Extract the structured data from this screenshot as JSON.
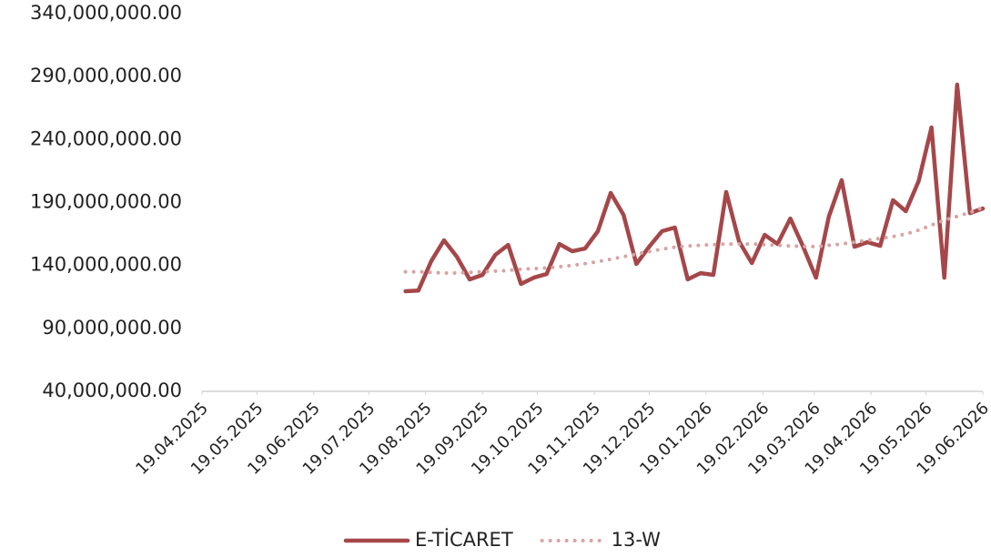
{
  "chart_data": {
    "type": "line",
    "x": [
      "2025-08-08",
      "2025-08-15",
      "2025-08-22",
      "2025-08-29",
      "2025-09-05",
      "2025-09-12",
      "2025-09-19",
      "2025-09-26",
      "2025-10-03",
      "2025-10-10",
      "2025-10-17",
      "2025-10-24",
      "2025-10-31",
      "2025-11-07",
      "2025-11-14",
      "2025-11-21",
      "2025-11-28",
      "2025-12-05",
      "2025-12-12",
      "2025-12-19",
      "2025-12-26",
      "2026-01-02",
      "2026-01-09",
      "2026-01-16",
      "2026-01-23",
      "2026-01-30",
      "2026-02-06",
      "2026-02-13",
      "2026-02-20",
      "2026-02-27",
      "2026-03-06",
      "2026-03-13",
      "2026-03-20",
      "2026-03-27",
      "2026-04-03",
      "2026-04-10",
      "2026-04-17",
      "2026-04-24",
      "2026-05-01",
      "2026-05-08",
      "2026-05-15",
      "2026-05-22",
      "2026-05-29",
      "2026-06-05",
      "2026-06-12",
      "2026-06-19"
    ],
    "series": [
      {
        "name": "E-TİCARET",
        "color": "#a5474a",
        "style": "solid",
        "values": [
          119500000,
          120000000,
          143300000,
          160000000,
          147000000,
          128900000,
          132500000,
          148400000,
          156300000,
          125300000,
          130300000,
          133200000,
          157000000,
          151300000,
          153400000,
          167200000,
          197600000,
          180200000,
          141200000,
          154900000,
          167200000,
          170100000,
          128900000,
          133900000,
          132500000,
          198300000,
          159200000,
          141900000,
          164300000,
          157000000,
          177300000,
          154900000,
          130300000,
          178800000,
          207700000,
          154900000,
          158500000,
          155600000,
          191800000,
          183100000,
          207000000,
          249600000,
          130300000,
          283600000,
          181600000,
          185200000
        ]
      },
      {
        "name": "13-W",
        "color": "#d9a3a3",
        "style": "dotted",
        "values": [
          135000000,
          135000000,
          134500000,
          134000000,
          134000000,
          134500000,
          135000000,
          135500000,
          136000000,
          137000000,
          137500000,
          138000000,
          139000000,
          140000000,
          141500000,
          143000000,
          145000000,
          147000000,
          149000000,
          151000000,
          153000000,
          154500000,
          155500000,
          156000000,
          156500000,
          157000000,
          157000000,
          157000000,
          156500000,
          156000000,
          155500000,
          155000000,
          155000000,
          156000000,
          157000000,
          158500000,
          160000000,
          161500000,
          163000000,
          165000000,
          168000000,
          172000000,
          176000000,
          179000000,
          182000000,
          186000000
        ]
      }
    ],
    "xlim": [
      "2025-04-19",
      "2026-06-19"
    ],
    "xticks": [
      {
        "value": "2025-04-19",
        "label": "19.04.2025"
      },
      {
        "value": "2025-05-19",
        "label": "19.05.2025"
      },
      {
        "value": "2025-06-19",
        "label": "19.06.2025"
      },
      {
        "value": "2025-07-19",
        "label": "19.07.2025"
      },
      {
        "value": "2025-08-19",
        "label": "19.08.2025"
      },
      {
        "value": "2025-09-19",
        "label": "19.09.2025"
      },
      {
        "value": "2025-10-19",
        "label": "19.10.2025"
      },
      {
        "value": "2025-11-19",
        "label": "19.11.2025"
      },
      {
        "value": "2025-12-19",
        "label": "19.12.2025"
      },
      {
        "value": "2026-01-19",
        "label": "19.01.2026"
      },
      {
        "value": "2026-02-19",
        "label": "19.02.2026"
      },
      {
        "value": "2026-03-19",
        "label": "19.03.2026"
      },
      {
        "value": "2026-04-19",
        "label": "19.04.2026"
      },
      {
        "value": "2026-05-19",
        "label": "19.05.2026"
      },
      {
        "value": "2026-06-19",
        "label": "19.06.2026"
      }
    ],
    "ylim": [
      40000000,
      340000000
    ],
    "yticks": [
      {
        "value": 40000000,
        "label": "40,000,000.00"
      },
      {
        "value": 90000000,
        "label": "90,000,000.00"
      },
      {
        "value": 140000000,
        "label": "140,000,000.00"
      },
      {
        "value": 190000000,
        "label": "190,000,000.00"
      },
      {
        "value": 240000000,
        "label": "240,000,000.00"
      },
      {
        "value": 290000000,
        "label": "290,000,000.00"
      },
      {
        "value": 340000000,
        "label": "340,000,000.00"
      }
    ],
    "grid": false,
    "legend": "bottom"
  }
}
